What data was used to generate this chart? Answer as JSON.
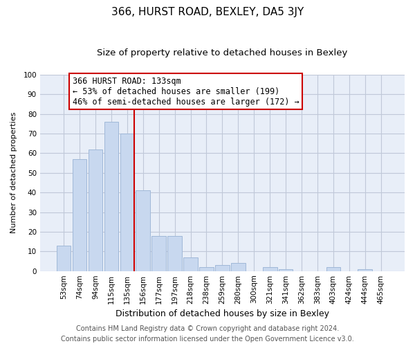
{
  "title": "366, HURST ROAD, BEXLEY, DA5 3JY",
  "subtitle": "Size of property relative to detached houses in Bexley",
  "xlabel": "Distribution of detached houses by size in Bexley",
  "ylabel": "Number of detached properties",
  "bar_labels": [
    "53sqm",
    "74sqm",
    "94sqm",
    "115sqm",
    "135sqm",
    "156sqm",
    "177sqm",
    "197sqm",
    "218sqm",
    "238sqm",
    "259sqm",
    "280sqm",
    "300sqm",
    "321sqm",
    "341sqm",
    "362sqm",
    "383sqm",
    "403sqm",
    "424sqm",
    "444sqm",
    "465sqm"
  ],
  "bar_values": [
    13,
    57,
    62,
    76,
    70,
    41,
    18,
    18,
    7,
    2,
    3,
    4,
    0,
    2,
    1,
    0,
    0,
    2,
    0,
    1,
    0
  ],
  "bar_color": "#c8d8ef",
  "bar_edge_color": "#a0b8d8",
  "highlight_line_color": "#cc0000",
  "annotation_text_line1": "366 HURST ROAD: 133sqm",
  "annotation_text_line2": "← 53% of detached houses are smaller (199)",
  "annotation_text_line3": "46% of semi-detached houses are larger (172) →",
  "annotation_box_edge_color": "#cc0000",
  "annotation_box_facecolor": "white",
  "ylim": [
    0,
    100
  ],
  "yticks": [
    0,
    10,
    20,
    30,
    40,
    50,
    60,
    70,
    80,
    90,
    100
  ],
  "grid_color": "#c0c8d8",
  "background_color": "#e8eef8",
  "footer_line1": "Contains HM Land Registry data © Crown copyright and database right 2024.",
  "footer_line2": "Contains public sector information licensed under the Open Government Licence v3.0.",
  "title_fontsize": 11,
  "subtitle_fontsize": 9.5,
  "xlabel_fontsize": 9,
  "ylabel_fontsize": 8,
  "tick_fontsize": 7.5,
  "annotation_fontsize": 8.5,
  "footer_fontsize": 7
}
